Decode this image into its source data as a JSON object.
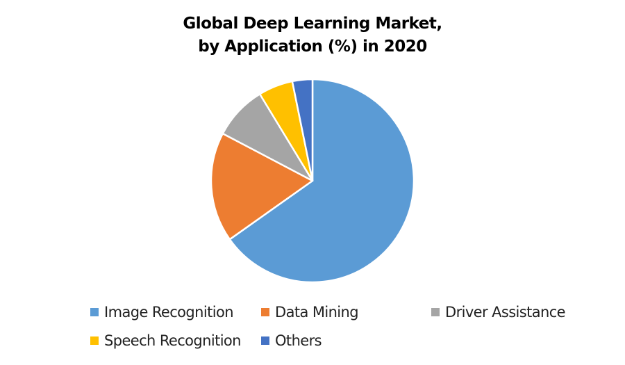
{
  "chart_data": {
    "type": "pie",
    "title": "Global Deep Learning Market, by Application (%) in 2020",
    "title_lines": [
      "Global Deep Learning Market,",
      "by Application (%) in 2020"
    ],
    "categories": [
      "Image Recognition",
      "Data Mining",
      "Driver Assistance",
      "Speech Recognition",
      "Others"
    ],
    "values": [
      65.2,
      17.5,
      8.6,
      5.5,
      3.2
    ],
    "colors": [
      "#5B9BD5",
      "#ED7D31",
      "#A5A5A5",
      "#FFC000",
      "#4472C4"
    ],
    "start_angle_deg": 0,
    "direction": "clockwise",
    "legend_position": "bottom",
    "data_labels": false
  },
  "legend": {
    "items": [
      {
        "label": "Image Recognition",
        "color": "#5B9BD5"
      },
      {
        "label": "Data Mining",
        "color": "#ED7D31"
      },
      {
        "label": "Driver Assistance",
        "color": "#A5A5A5"
      },
      {
        "label": "Speech Recognition",
        "color": "#FFC000"
      },
      {
        "label": "Others",
        "color": "#4472C4"
      }
    ]
  }
}
